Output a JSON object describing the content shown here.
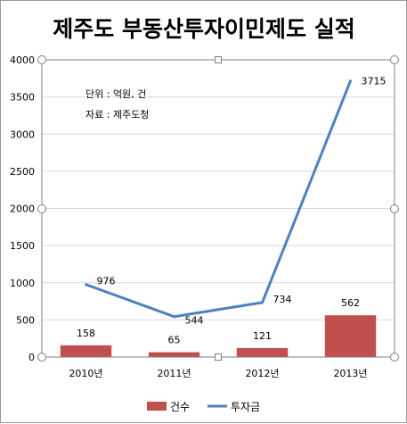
{
  "chart_data": {
    "type": "bar+line",
    "title": "제주도 부동산투자이민제도 실적",
    "notes": [
      "단위 : 억원, 건",
      "자료 : 제주도청"
    ],
    "categories": [
      "2010년",
      "2011년",
      "2012년",
      "2013년"
    ],
    "ylim": [
      0,
      4000
    ],
    "yticks": [
      0,
      500,
      1000,
      1500,
      2000,
      2500,
      3000,
      3500,
      4000
    ],
    "grid": true,
    "legend_position": "bottom",
    "series": [
      {
        "name": "건수",
        "kind": "bar",
        "color": "#c0504d",
        "values": [
          158,
          65,
          121,
          562
        ]
      },
      {
        "name": "투자금",
        "kind": "line",
        "color": "#4f81bd",
        "values": [
          976,
          544,
          734,
          3715
        ]
      }
    ]
  }
}
